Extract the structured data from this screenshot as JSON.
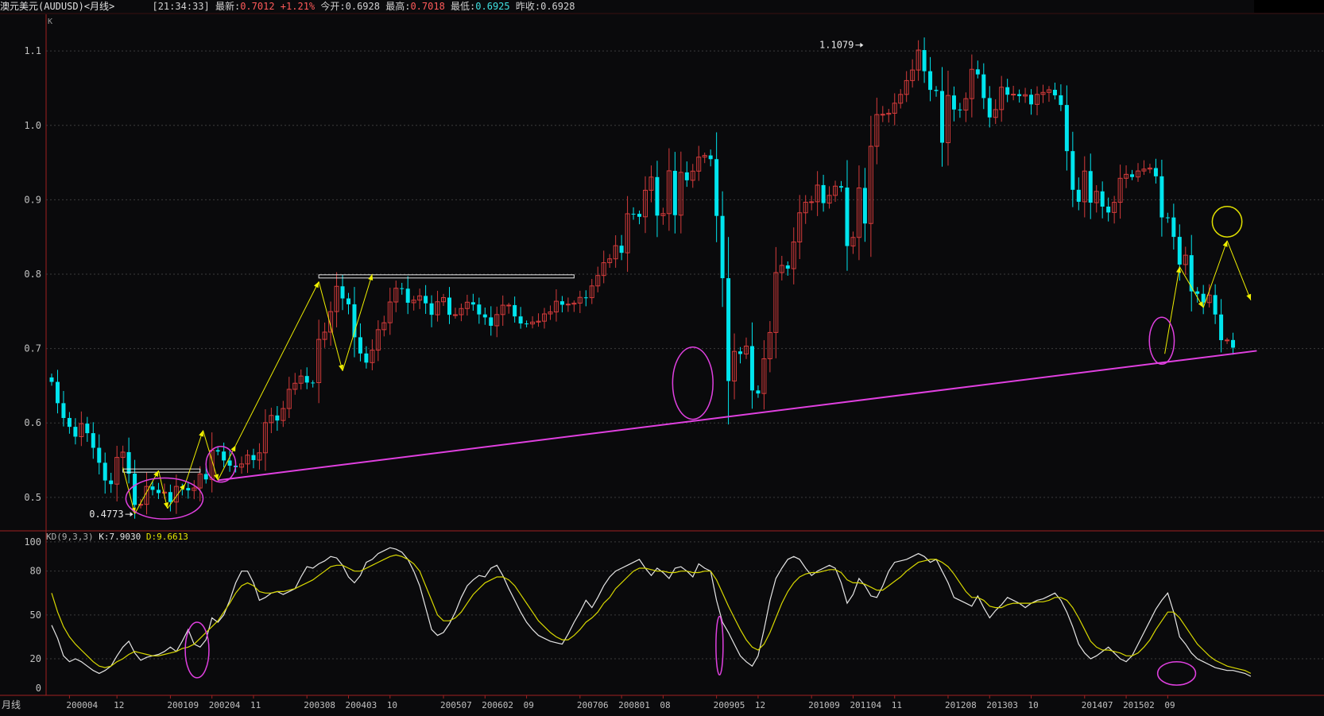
{
  "header": {
    "symbol": "澳元美元(AUDUSD)<月线>",
    "time": "[21:34:33]",
    "latest_label": "最新:",
    "latest_value": "0.7012",
    "change": "+1.21%",
    "open_label": "今开:",
    "open_value": "0.6928",
    "high_label": "最高:",
    "high_value": "0.7018",
    "low_label": "最低:",
    "low_value": "0.6925",
    "prev_label": "昨收:",
    "prev_value": "0.6928"
  },
  "kd": {
    "name": "KD(9,3,3)",
    "k_label": "K:7.9030",
    "d_label": "D:9.6613"
  },
  "chart_data": [
    {
      "type": "candlestick",
      "corner_label": "K",
      "ylim": [
        0.455,
        1.145
      ],
      "yticks": [
        0.5,
        0.6,
        0.7,
        0.8,
        0.9,
        1.0,
        1.1
      ],
      "ytick_labels": [
        "0.5",
        "0.6",
        "0.7",
        "0.8",
        "0.9",
        "1.0",
        "1.1"
      ],
      "grid": true,
      "annotations": [
        {
          "text": "1.1079",
          "x": 137,
          "y": 1.1079
        },
        {
          "text": "0.4773",
          "x": 14,
          "y": 0.4773
        }
      ],
      "up_color": "#d43b3b",
      "down_color": "#00e5ee",
      "candles_period": "monthly, 2000-01 to 2015-12",
      "closes": [
        0.6552,
        0.6266,
        0.6067,
        0.5948,
        0.5816,
        0.5991,
        0.5863,
        0.5666,
        0.5465,
        0.5227,
        0.5178,
        0.5537,
        0.5608,
        0.5319,
        0.4898,
        0.4906,
        0.5147,
        0.5101,
        0.5058,
        0.5071,
        0.4937,
        0.5147,
        0.5126,
        0.5094,
        0.5126,
        0.5314,
        0.5241,
        0.5634,
        0.5616,
        0.5496,
        0.5426,
        0.5406,
        0.5449,
        0.5568,
        0.5501,
        0.5599,
        0.6004,
        0.6101,
        0.6033,
        0.6194,
        0.6452,
        0.6534,
        0.6631,
        0.6543,
        0.6542,
        0.7123,
        0.7221,
        0.7497,
        0.7837,
        0.7674,
        0.7595,
        0.7152,
        0.6934,
        0.6811,
        0.6979,
        0.7254,
        0.7347,
        0.7626,
        0.7811,
        0.7805,
        0.7616,
        0.7651,
        0.7708,
        0.7608,
        0.7454,
        0.7629,
        0.7685,
        0.7454,
        0.7455,
        0.7538,
        0.7623,
        0.7592,
        0.7459,
        0.7419,
        0.7306,
        0.7457,
        0.7583,
        0.7584,
        0.7432,
        0.7337,
        0.7331,
        0.7356,
        0.7368,
        0.7466,
        0.7492,
        0.7636,
        0.7589,
        0.7597,
        0.7611,
        0.7688,
        0.7684,
        0.7842,
        0.7982,
        0.8154,
        0.8206,
        0.8383,
        0.8287,
        0.8812,
        0.8811,
        0.8771,
        0.9128,
        0.9305,
        0.8787,
        0.8814,
        0.9389,
        0.8793,
        0.9368,
        0.9262,
        0.9385,
        0.9573,
        0.9596,
        0.9546,
        0.8783,
        0.7946,
        0.6564,
        0.6962,
        0.6927,
        0.7033,
        0.6437,
        0.6396,
        0.6863,
        0.7216,
        0.8021,
        0.8118,
        0.8074,
        0.8433,
        0.8825,
        0.8967,
        0.8973,
        0.9197,
        0.8955,
        0.9059,
        0.9183,
        0.9164,
        0.8378,
        0.8494,
        0.9159,
        0.8681,
        0.9719,
        1.0145,
        1.0149,
        1.0163,
        1.0298,
        1.0416,
        1.0602,
        1.0744,
        1.1012,
        1.0728,
        1.0477,
        1.0462,
        0.9767,
        1.0402,
        1.0213,
        1.0205,
        1.0359,
        1.0753,
        1.0685,
        1.0367,
        1.0107,
        1.0212,
        1.0513,
        1.0412,
        1.0419,
        1.0394,
        1.0412,
        1.0282,
        1.0416,
        1.0443,
        1.0478,
        1.0404,
        1.0274,
        0.9654,
        0.9134,
        0.8973,
        0.9386,
        0.8961,
        0.9113,
        0.8908,
        0.8829,
        0.8966,
        0.9289,
        0.9342,
        0.9306,
        0.9387,
        0.9412,
        0.9426,
        0.9315,
        0.8763,
        0.8762,
        0.8501,
        0.8129,
        0.8255,
        0.7769,
        0.7736,
        0.7618,
        0.7719,
        0.7458,
        0.7113,
        0.7115,
        0.7012
      ]
    },
    {
      "type": "line",
      "title": "KD(9,3,3)",
      "ylim": [
        -5,
        107
      ],
      "yticks": [
        0,
        20,
        50,
        80,
        100
      ],
      "ytick_labels": [
        "0",
        "20",
        "50",
        "80",
        "100"
      ],
      "series": [
        {
          "name": "K",
          "color": "#e6e6e6",
          "values": [
            43,
            34,
            22,
            18,
            20,
            18,
            15,
            12,
            10,
            12,
            15,
            22,
            28,
            32,
            24,
            19,
            21,
            22,
            23,
            25,
            28,
            25,
            32,
            40,
            30,
            28,
            33,
            48,
            45,
            50,
            60,
            72,
            80,
            80,
            72,
            60,
            62,
            65,
            66,
            64,
            66,
            68,
            76,
            83,
            82,
            85,
            87,
            90,
            89,
            84,
            76,
            72,
            77,
            86,
            88,
            92,
            94,
            96,
            95,
            93,
            88,
            80,
            70,
            55,
            40,
            36,
            38,
            44,
            52,
            62,
            70,
            74,
            77,
            76,
            82,
            84,
            77,
            68,
            60,
            52,
            45,
            40,
            36,
            34,
            32,
            31,
            30,
            37,
            45,
            52,
            60,
            55,
            62,
            70,
            76,
            80,
            82,
            84,
            86,
            88,
            82,
            77,
            82,
            79,
            75,
            82,
            83,
            80,
            76,
            85,
            82,
            80,
            60,
            45,
            38,
            30,
            22,
            18,
            15,
            22,
            40,
            60,
            75,
            82,
            88,
            90,
            88,
            82,
            77,
            80,
            82,
            84,
            82,
            72,
            58,
            64,
            75,
            70,
            63,
            62,
            70,
            80,
            86,
            87,
            88,
            90,
            92,
            90,
            86,
            88,
            80,
            72,
            62,
            60,
            58,
            56,
            63,
            55,
            48,
            53,
            57,
            62,
            60,
            58,
            55,
            58,
            60,
            61,
            63,
            65,
            60,
            52,
            42,
            30,
            24,
            20,
            22,
            25,
            28,
            24,
            20,
            18,
            22,
            30,
            38,
            46,
            54,
            60,
            65,
            52,
            35,
            30,
            24,
            20,
            18,
            16,
            14,
            13,
            12,
            12,
            11,
            10,
            8
          ]
        },
        {
          "name": "D",
          "color": "#d8d800",
          "values": [
            65,
            52,
            42,
            35,
            30,
            26,
            22,
            18,
            15,
            14,
            15,
            18,
            20,
            23,
            25,
            24,
            23,
            22,
            22,
            23,
            24,
            25,
            27,
            28,
            30,
            34,
            38,
            42,
            46,
            52,
            58,
            65,
            70,
            72,
            70,
            66,
            65,
            65,
            66,
            66,
            67,
            68,
            70,
            72,
            74,
            77,
            80,
            83,
            84,
            84,
            82,
            80,
            80,
            82,
            84,
            86,
            88,
            90,
            91,
            90,
            88,
            85,
            80,
            70,
            60,
            50,
            46,
            46,
            48,
            52,
            58,
            64,
            68,
            72,
            74,
            76,
            76,
            74,
            70,
            64,
            58,
            52,
            46,
            42,
            38,
            35,
            33,
            33,
            36,
            40,
            45,
            48,
            52,
            58,
            62,
            68,
            72,
            76,
            80,
            82,
            82,
            81,
            80,
            80,
            79,
            79,
            80,
            80,
            79,
            79,
            80,
            80,
            74,
            65,
            56,
            48,
            40,
            33,
            28,
            26,
            30,
            38,
            48,
            58,
            66,
            72,
            76,
            78,
            79,
            79,
            80,
            81,
            81,
            79,
            74,
            72,
            72,
            71,
            69,
            67,
            67,
            70,
            73,
            76,
            80,
            83,
            86,
            87,
            88,
            88,
            86,
            83,
            78,
            72,
            66,
            62,
            62,
            60,
            56,
            55,
            55,
            57,
            58,
            58,
            58,
            58,
            59,
            59,
            60,
            62,
            62,
            60,
            55,
            48,
            40,
            32,
            28,
            26,
            26,
            25,
            24,
            22,
            22,
            24,
            28,
            33,
            40,
            46,
            52,
            52,
            48,
            42,
            36,
            30,
            26,
            22,
            19,
            17,
            15,
            14,
            13,
            12,
            10
          ]
        }
      ]
    }
  ],
  "x_axis": {
    "corner_label": "月线",
    "tick_labels": [
      "200004",
      "12",
      "200109",
      "200204",
      "11",
      "200308",
      "200403",
      "10",
      "200507",
      "200602",
      "09",
      "200706",
      "200801",
      "08",
      "200905",
      "12",
      "201009",
      "201104",
      "11",
      "201208",
      "201303",
      "10",
      "201407",
      "201502",
      "09"
    ],
    "tick_months": [
      3,
      11,
      20,
      27,
      34,
      43,
      50,
      57,
      66,
      73,
      80,
      89,
      96,
      103,
      112,
      119,
      128,
      135,
      142,
      151,
      158,
      165,
      174,
      181,
      188
    ]
  },
  "trend_lines": [
    {
      "name": "support-line",
      "color": "#e040e0",
      "from": [
        28,
        0.523
      ],
      "to": [
        203,
        0.697
      ]
    }
  ],
  "resistance_lines": [
    {
      "name": "resistance-2001",
      "color": "#e8e8e8",
      "from": [
        12,
        0.536
      ],
      "to": [
        25,
        0.536
      ]
    },
    {
      "name": "resistance-2003",
      "color": "#e8e8e8",
      "from": [
        45,
        0.797
      ],
      "to": [
        88,
        0.797
      ]
    }
  ],
  "yellow_paths": [
    [
      [
        12,
        0.54
      ],
      [
        14,
        0.478
      ],
      [
        18,
        0.536
      ],
      [
        19.5,
        0.485
      ],
      [
        22.5,
        0.518
      ],
      [
        25.5,
        0.59
      ],
      [
        28,
        0.523
      ],
      [
        31,
        0.57
      ],
      [
        45,
        0.79
      ],
      [
        49,
        0.67
      ],
      [
        54,
        0.8
      ]
    ],
    [
      [
        187.5,
        0.693
      ],
      [
        190,
        0.81
      ],
      [
        194,
        0.755
      ],
      [
        198,
        0.845
      ],
      [
        202,
        0.765
      ]
    ]
  ],
  "ellipses": {
    "price": [
      {
        "cx": 19,
        "cy": 0.4985,
        "rx": 6.5,
        "ry": 0.0275,
        "color": "#e040e0"
      },
      {
        "cx": 28.5,
        "cy": 0.5445,
        "rx": 2.5,
        "ry": 0.024,
        "color": "#e040e0"
      },
      {
        "cx": 108,
        "cy": 0.6535,
        "rx": 3.4,
        "ry": 0.0485,
        "color": "#e040e0"
      },
      {
        "cx": 187,
        "cy": 0.7105,
        "rx": 2.1,
        "ry": 0.0315,
        "color": "#e040e0"
      },
      {
        "cx": 198,
        "cy": 0.8705,
        "rx": 2.5,
        "ry": 0.0205,
        "color": "#e0e000"
      }
    ],
    "kd": [
      {
        "cx": 24.5,
        "cy": 26,
        "rx": 2.0,
        "ry": 19,
        "color": "#e040e0"
      },
      {
        "cx": 112.5,
        "cy": 29,
        "rx": 0.6,
        "ry": 20,
        "color": "#e040e0"
      },
      {
        "cx": 189.5,
        "cy": 10,
        "rx": 3.2,
        "ry": 8,
        "color": "#e040e0"
      }
    ]
  }
}
